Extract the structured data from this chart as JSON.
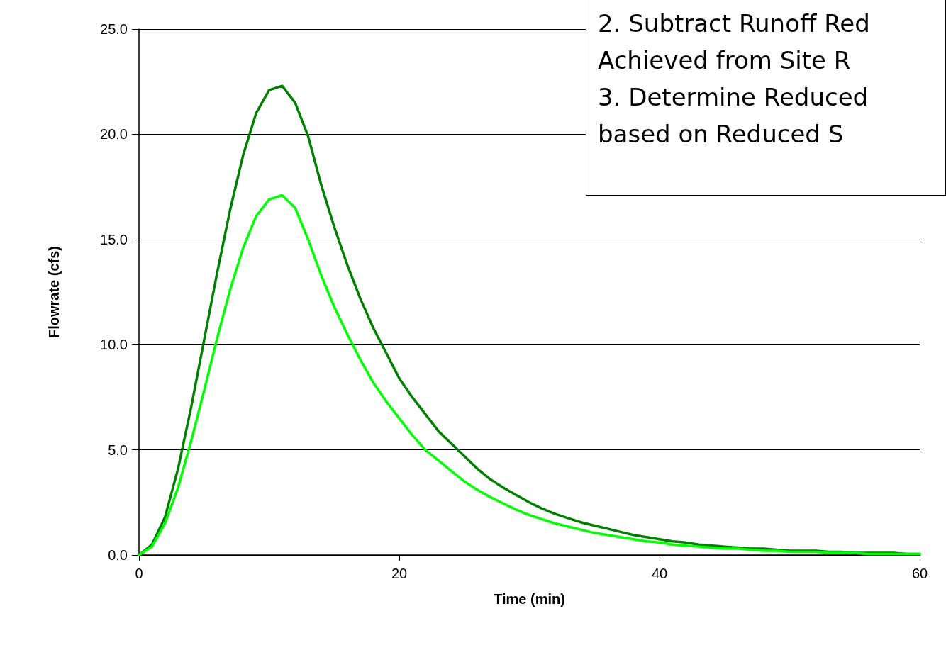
{
  "chart_data": {
    "type": "line",
    "xlabel": "Time (min)",
    "ylabel": "Flowrate (cfs)",
    "annotations": [
      "2. Subtract Runoff Red",
      "Achieved from Site R",
      "3. Determine Reduced",
      "based on Reduced S"
    ],
    "x": [
      0,
      1,
      2,
      3,
      4,
      5,
      6,
      7,
      8,
      9,
      10,
      11,
      12,
      13,
      14,
      15,
      16,
      17,
      18,
      19,
      20,
      21,
      22,
      23,
      24,
      25,
      26,
      27,
      28,
      29,
      30,
      31,
      32,
      33,
      34,
      35,
      36,
      37,
      38,
      39,
      40,
      41,
      42,
      43,
      44,
      45,
      46,
      47,
      48,
      49,
      50,
      51,
      52,
      53,
      54,
      55,
      56,
      57,
      58,
      59,
      60
    ],
    "series": [
      {
        "color": "#008000",
        "values": [
          0,
          0.5,
          1.8,
          4.1,
          7.0,
          10.2,
          13.4,
          16.4,
          19.0,
          21.0,
          22.1,
          22.3,
          21.5,
          19.9,
          17.6,
          15.6,
          13.8,
          12.2,
          10.8,
          9.6,
          8.4,
          7.5,
          6.7,
          5.9,
          5.3,
          4.7,
          4.1,
          3.6,
          3.2,
          2.85,
          2.5,
          2.2,
          1.95,
          1.75,
          1.55,
          1.4,
          1.25,
          1.1,
          0.95,
          0.85,
          0.75,
          0.65,
          0.6,
          0.5,
          0.45,
          0.4,
          0.35,
          0.3,
          0.3,
          0.25,
          0.2,
          0.2,
          0.2,
          0.15,
          0.15,
          0.1,
          0.1,
          0.1,
          0.1,
          0.05,
          0.05
        ]
      },
      {
        "color": "#00ff00",
        "values": [
          0,
          0.4,
          1.5,
          3.2,
          5.4,
          7.8,
          10.3,
          12.6,
          14.6,
          16.1,
          16.9,
          17.1,
          16.5,
          15.0,
          13.3,
          11.8,
          10.5,
          9.3,
          8.2,
          7.3,
          6.5,
          5.7,
          5.0,
          4.5,
          4.0,
          3.5,
          3.1,
          2.75,
          2.45,
          2.15,
          1.9,
          1.7,
          1.5,
          1.35,
          1.2,
          1.05,
          0.95,
          0.85,
          0.75,
          0.65,
          0.6,
          0.5,
          0.45,
          0.4,
          0.35,
          0.3,
          0.3,
          0.25,
          0.2,
          0.2,
          0.15,
          0.15,
          0.15,
          0.1,
          0.1,
          0.1,
          0.05,
          0.05,
          0.05,
          0.05,
          0.05
        ]
      }
    ],
    "xlim": [
      0,
      60
    ],
    "xticks": [
      0,
      20,
      40,
      60
    ],
    "ylim": [
      0,
      25
    ],
    "yticks": [
      {
        "value": 0,
        "label": "0.0"
      },
      {
        "value": 5,
        "label": "5.0"
      },
      {
        "value": 10,
        "label": "10.0"
      },
      {
        "value": 15,
        "label": "15.0"
      },
      {
        "value": 20,
        "label": "20.0"
      },
      {
        "value": 25,
        "label": "25.0"
      }
    ],
    "grid": "y",
    "marker": "none",
    "line_style": "solid"
  }
}
